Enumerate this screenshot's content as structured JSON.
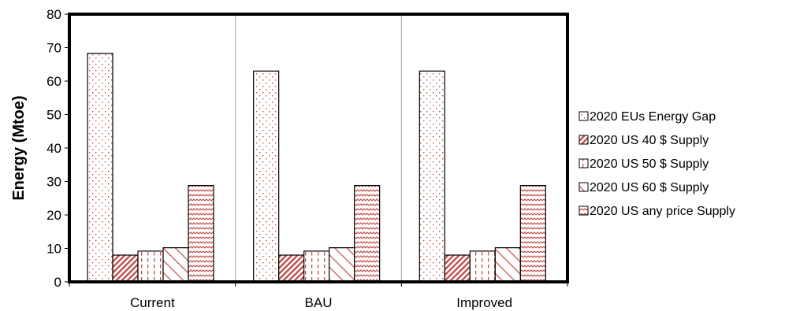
{
  "chart_data": {
    "type": "bar",
    "title": "",
    "xlabel": "",
    "ylabel": "Energy (Mtoe)",
    "ylim": [
      0,
      80
    ],
    "yticks": [
      0,
      10,
      20,
      30,
      40,
      50,
      60,
      70,
      80
    ],
    "grid": true,
    "legend_position": "right",
    "categories": [
      "Current",
      "BAU",
      "Improved"
    ],
    "series": [
      {
        "name": "2020 EUs Energy Gap",
        "values": [
          68.3,
          63.0,
          63.0
        ],
        "pattern": "dots",
        "color": "#c0504d"
      },
      {
        "name": "2020 US 40 $ Supply",
        "values": [
          8.0,
          8.0,
          8.0
        ],
        "pattern": "dense-diagonal",
        "color": "#c0504d"
      },
      {
        "name": "2020 US 50 $ Supply",
        "values": [
          9.2,
          9.2,
          9.2
        ],
        "pattern": "dashed-vertical",
        "color": "#c0504d"
      },
      {
        "name": "2020 US 60 $ Supply",
        "values": [
          10.2,
          10.2,
          10.2
        ],
        "pattern": "wide-diagonal",
        "color": "#c0504d"
      },
      {
        "name": "2020 US any price Supply",
        "values": [
          28.8,
          28.8,
          28.8
        ],
        "pattern": "zigzag",
        "color": "#c0504d"
      }
    ]
  }
}
